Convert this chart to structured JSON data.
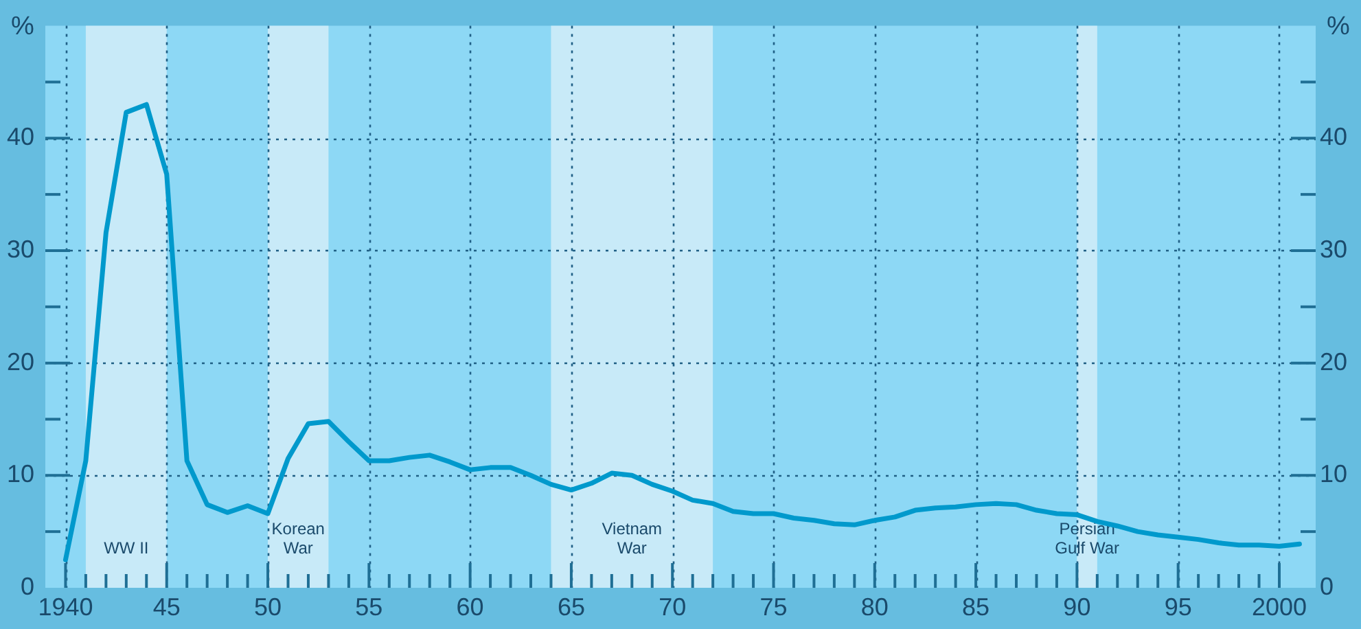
{
  "chart_data": {
    "type": "line",
    "ylabel": "%",
    "y2label": "%",
    "x": [
      1940,
      1941,
      1942,
      1943,
      1944,
      1945,
      1946,
      1947,
      1948,
      1949,
      1950,
      1951,
      1952,
      1953,
      1954,
      1955,
      1956,
      1957,
      1958,
      1959,
      1960,
      1961,
      1962,
      1963,
      1964,
      1965,
      1966,
      1967,
      1968,
      1969,
      1970,
      1971,
      1972,
      1973,
      1974,
      1975,
      1976,
      1977,
      1978,
      1979,
      1980,
      1981,
      1982,
      1983,
      1984,
      1985,
      1986,
      1987,
      1988,
      1989,
      1990,
      1991,
      1992,
      1993,
      1994,
      1995,
      1996,
      1997,
      1998,
      1999,
      2000,
      2001
    ],
    "series": [
      {
        "color": "#0099cc",
        "values": [
          2.5,
          11.3,
          31.6,
          42.3,
          43.0,
          36.8,
          11.3,
          7.4,
          6.7,
          7.3,
          6.6,
          11.5,
          14.6,
          14.8,
          13.0,
          11.3,
          11.3,
          11.6,
          11.8,
          11.2,
          10.5,
          10.7,
          10.7,
          10.0,
          9.2,
          8.7,
          9.3,
          10.2,
          10.0,
          9.2,
          8.6,
          7.8,
          7.5,
          6.8,
          6.6,
          6.6,
          6.2,
          6.0,
          5.7,
          5.6,
          6.0,
          6.3,
          6.9,
          7.1,
          7.2,
          7.4,
          7.5,
          7.4,
          6.9,
          6.6,
          6.5,
          5.9,
          5.5,
          5.0,
          4.7,
          4.5,
          4.3,
          4.0,
          3.8,
          3.8,
          3.7,
          3.9
        ]
      }
    ],
    "marker": "none",
    "line_style": "solid",
    "grid": true,
    "legend": false,
    "xlim": [
      1939,
      2001.8
    ],
    "xticks": [
      {
        "value": 1940,
        "label": "1940"
      },
      {
        "value": 1941,
        "label": null
      },
      {
        "value": 1942,
        "label": null
      },
      {
        "value": 1943,
        "label": null
      },
      {
        "value": 1944,
        "label": null
      },
      {
        "value": 1945,
        "label": "45"
      },
      {
        "value": 1946,
        "label": null
      },
      {
        "value": 1947,
        "label": null
      },
      {
        "value": 1948,
        "label": null
      },
      {
        "value": 1949,
        "label": null
      },
      {
        "value": 1950,
        "label": "50"
      },
      {
        "value": 1951,
        "label": null
      },
      {
        "value": 1952,
        "label": null
      },
      {
        "value": 1953,
        "label": null
      },
      {
        "value": 1954,
        "label": null
      },
      {
        "value": 1955,
        "label": "55"
      },
      {
        "value": 1956,
        "label": null
      },
      {
        "value": 1957,
        "label": null
      },
      {
        "value": 1958,
        "label": null
      },
      {
        "value": 1959,
        "label": null
      },
      {
        "value": 1960,
        "label": "60"
      },
      {
        "value": 1961,
        "label": null
      },
      {
        "value": 1962,
        "label": null
      },
      {
        "value": 1963,
        "label": null
      },
      {
        "value": 1964,
        "label": null
      },
      {
        "value": 1965,
        "label": "65"
      },
      {
        "value": 1966,
        "label": null
      },
      {
        "value": 1967,
        "label": null
      },
      {
        "value": 1968,
        "label": null
      },
      {
        "value": 1969,
        "label": null
      },
      {
        "value": 1970,
        "label": "70"
      },
      {
        "value": 1971,
        "label": null
      },
      {
        "value": 1972,
        "label": null
      },
      {
        "value": 1973,
        "label": null
      },
      {
        "value": 1974,
        "label": null
      },
      {
        "value": 1975,
        "label": "75"
      },
      {
        "value": 1976,
        "label": null
      },
      {
        "value": 1977,
        "label": null
      },
      {
        "value": 1978,
        "label": null
      },
      {
        "value": 1979,
        "label": null
      },
      {
        "value": 1980,
        "label": "80"
      },
      {
        "value": 1981,
        "label": null
      },
      {
        "value": 1982,
        "label": null
      },
      {
        "value": 1983,
        "label": null
      },
      {
        "value": 1984,
        "label": null
      },
      {
        "value": 1985,
        "label": "85"
      },
      {
        "value": 1986,
        "label": null
      },
      {
        "value": 1987,
        "label": null
      },
      {
        "value": 1988,
        "label": null
      },
      {
        "value": 1989,
        "label": null
      },
      {
        "value": 1990,
        "label": "90"
      },
      {
        "value": 1991,
        "label": null
      },
      {
        "value": 1992,
        "label": null
      },
      {
        "value": 1993,
        "label": null
      },
      {
        "value": 1994,
        "label": null
      },
      {
        "value": 1995,
        "label": "95"
      },
      {
        "value": 1996,
        "label": null
      },
      {
        "value": 1997,
        "label": null
      },
      {
        "value": 1998,
        "label": null
      },
      {
        "value": 1999,
        "label": null
      },
      {
        "value": 2000,
        "label": "2000"
      }
    ],
    "ylim": [
      0,
      50
    ],
    "yticks": [
      0,
      {
        "value": 5,
        "label": null
      },
      10,
      {
        "value": 15,
        "label": null
      },
      20,
      {
        "value": 25,
        "label": null
      },
      30,
      {
        "value": 35,
        "label": null
      },
      40,
      {
        "value": 45,
        "label": null
      }
    ],
    "y2lim": [
      0,
      50
    ],
    "y2ticks": [
      0,
      {
        "value": 5,
        "label": null
      },
      10,
      {
        "value": 15,
        "label": null
      },
      20,
      {
        "value": 25,
        "label": null
      },
      30,
      {
        "value": 35,
        "label": null
      },
      40,
      {
        "value": 45,
        "label": null
      }
    ],
    "bands": [
      {
        "axis": "x",
        "from": 1941,
        "to": 1945,
        "label": "WW II",
        "color": "#c8eaf8"
      },
      {
        "axis": "x",
        "from": 1950,
        "to": 1953,
        "label": "Korean\nWar",
        "color": "#c8eaf8"
      },
      {
        "axis": "x",
        "from": 1964,
        "to": 1972,
        "label": "Vietnam\nWar",
        "color": "#c8eaf8"
      },
      {
        "axis": "x",
        "from": 1990,
        "to": 1991,
        "label": "Persian\nGulf War",
        "color": "#c8eaf8"
      }
    ]
  }
}
